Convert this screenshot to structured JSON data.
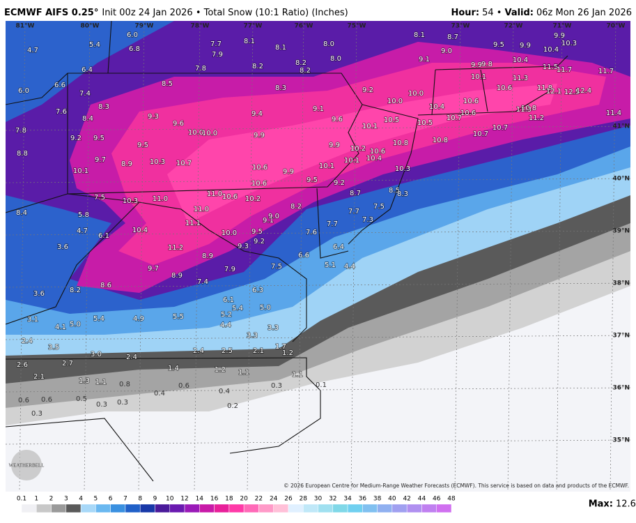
{
  "header": {
    "model": "ECMWF AIFS 0.25°",
    "info": "Init 00z 24 Jan 2026 • Total Snow (10:1 Ratio) (Inches)",
    "hour_label": "Hour:",
    "hour": "54 •",
    "valid_label": "Valid:",
    "valid": "06z Mon 26 Jan 2026"
  },
  "longitudes": [
    "81°W",
    "80°W",
    "79°W",
    "78°W",
    "77°W",
    "76°W",
    "75°W",
    "73°W",
    "72°W",
    "71°W",
    "70°W"
  ],
  "latitudes": [
    "41°N",
    "40°N",
    "39°N",
    "38°N",
    "37°N",
    "36°N",
    "35°N"
  ],
  "map_labels": [
    "4.7",
    "5.4",
    "6.0",
    "6.8",
    "6.4",
    "6.6",
    "6.0",
    "7.4",
    "7.6",
    "7.8",
    "8.8",
    "8.3",
    "8.4",
    "9.2",
    "9.5",
    "9.7",
    "10.1",
    "8.9",
    "9.5",
    "9.3",
    "9.6",
    "10.0",
    "10.0",
    "10.3",
    "10.7",
    "7.5",
    "10.3",
    "11.0",
    "11.0",
    "10.6",
    "10.2",
    "11.0",
    "11.1",
    "10.4",
    "5.8",
    "4.7",
    "6.1",
    "3.6",
    "8.4",
    "11.2",
    "8.9",
    "10.0",
    "9.5",
    "9.2",
    "9.3",
    "9.1",
    "9.0",
    "8.2",
    "7.6",
    "7.7",
    "7.7",
    "7.3",
    "7.5",
    "8.5",
    "8.3",
    "8.7",
    "9.2",
    "9.5",
    "9.9",
    "10.6",
    "10.6",
    "10.1",
    "10.1",
    "10.2",
    "10.6",
    "10.4",
    "10.3",
    "9.9",
    "9.9",
    "9.4",
    "8.3",
    "8.5",
    "7.8",
    "7.7",
    "7.9",
    "8.1",
    "8.1",
    "8.0",
    "8.0",
    "8.2",
    "8.2",
    "8.2",
    "9.1",
    "9.6",
    "10.1",
    "10.5",
    "10.8",
    "9.2",
    "10.0",
    "10.0",
    "10.4",
    "10.5",
    "10.7",
    "10.8",
    "10.7",
    "10.7",
    "10.6",
    "10.6",
    "10.6",
    "10.1",
    "9.9",
    "9.8",
    "10.4",
    "11.3",
    "10.8",
    "11.3",
    "11.2",
    "11.8",
    "12.1",
    "12.5",
    "12.4",
    "11.4",
    "11.5",
    "11.7",
    "11.7",
    "9.5",
    "9.9",
    "10.4",
    "10.3",
    "9.9",
    "8.1",
    "8.7",
    "9.0",
    "9.1",
    "9.7",
    "8.9",
    "7.4",
    "7.9",
    "7.5",
    "6.6",
    "6.4",
    "5.1",
    "4.4",
    "8.2",
    "8.6",
    "6.3",
    "6.1",
    "5.4",
    "5.2",
    "5.0",
    "4.4",
    "5.5",
    "4.9",
    "5.4",
    "5.0",
    "4.1",
    "3.6",
    "3.1",
    "2.4",
    "3.5",
    "3.0",
    "2.4",
    "3.3",
    "3.3",
    "2.4",
    "2.5",
    "2.1",
    "1.7",
    "1.2",
    "2.6",
    "2.7",
    "2.1",
    "1.4",
    "1.2",
    "1.1",
    "1.3",
    "1.1",
    "0.8",
    "0.6",
    "0.4",
    "0.4",
    "0.3",
    "0.1",
    "1.1",
    "0.6",
    "0.6",
    "0.5",
    "0.3",
    "0.3",
    "0.2",
    "0.3"
  ],
  "copyright": "© 2026 European Centre for Medium-Range Weather Forecasts (ECMWF). This service is based on data and products of the ECMWF.",
  "logo": "WEATHERBELL",
  "colorbar": {
    "ticks": [
      0.1,
      1,
      2,
      3,
      4,
      5,
      6,
      7,
      8,
      9,
      10,
      12,
      14,
      16,
      18,
      20,
      22,
      24,
      26,
      28,
      30,
      32,
      34,
      36,
      38,
      40,
      42,
      44,
      46,
      48
    ],
    "colors": [
      "#f0f0f4",
      "#c8c8c8",
      "#9a9a9a",
      "#5a5a5a",
      "#a8d8f8",
      "#6ab8f0",
      "#3a90e0",
      "#2060c8",
      "#1838a8",
      "#4a1a9a",
      "#6a1ab0",
      "#9a1ab8",
      "#c81aa8",
      "#e8209a",
      "#ff3aa8",
      "#ff6ab8",
      "#ff9ac8",
      "#ffc0d8",
      "#e0f0ff",
      "#c0e8f8",
      "#a0e0f0",
      "#80d8e8",
      "#70d0f0",
      "#80c0f0",
      "#90b0f0",
      "#a0a0f0",
      "#b090f0",
      "#c080f0",
      "#d070f0"
    ]
  },
  "max_label": "Max:",
  "max_value": "12.6"
}
